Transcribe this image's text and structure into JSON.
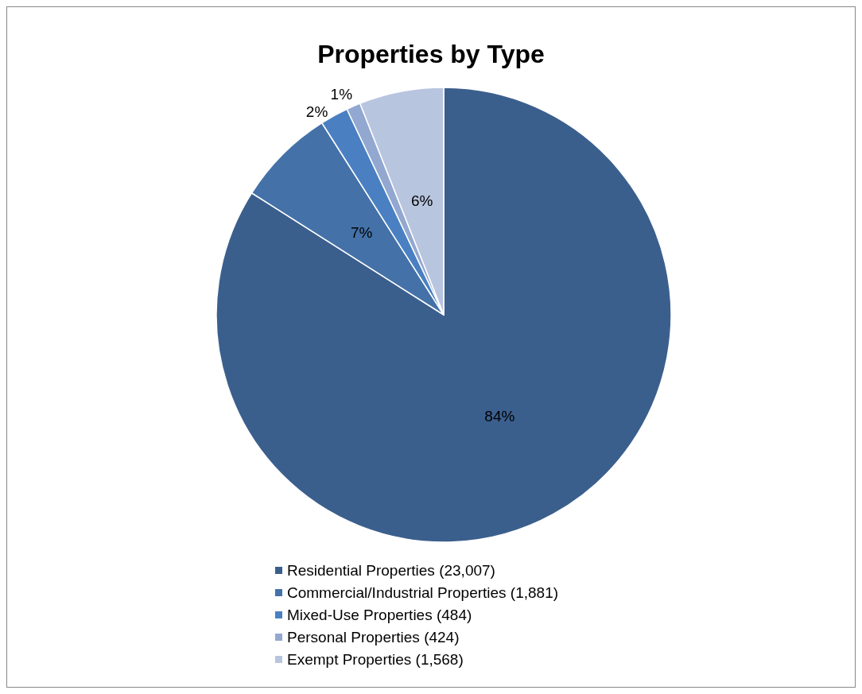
{
  "chart_data": {
    "type": "pie",
    "title": "Properties by Type",
    "categories": [
      "Residential Properties (23,007)",
      "Commercial/Industrial Properties (1,881)",
      "Mixed-Use Properties (484)",
      "Personal Properties (424)",
      "Exempt Properties (1,568)"
    ],
    "values": [
      84,
      7,
      2,
      1,
      6
    ],
    "value_labels": [
      "84%",
      "7%",
      "2%",
      "1%",
      "6%"
    ],
    "colors": [
      "#3b5f8d",
      "#4472a8",
      "#4a80c2",
      "#93a8d0",
      "#b8c5df"
    ],
    "legend": "bottom"
  }
}
